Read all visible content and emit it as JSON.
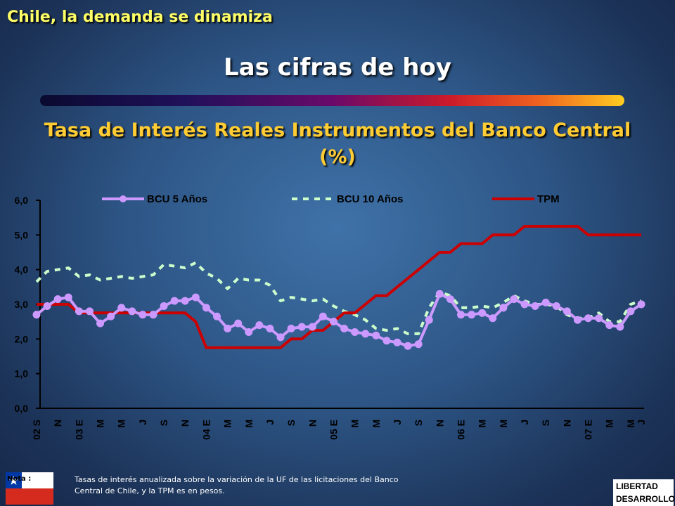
{
  "header": {
    "section": "Chile, la demanda se dinamiza",
    "title": "Las cifras de hoy"
  },
  "chart_data": {
    "type": "line",
    "title": "Tasa de Interés Reales Instrumentos del Banco Central",
    "subtitle": "(%)",
    "categories": [
      "02 S",
      null,
      "N",
      null,
      "03 E",
      null,
      "M",
      null,
      "M",
      null,
      "J",
      null,
      "S",
      null,
      "N",
      null,
      "04 E",
      null,
      "M",
      null,
      "M",
      null,
      "J",
      null,
      "S",
      null,
      "N",
      null,
      "05 E",
      null,
      "M",
      null,
      "M",
      null,
      "J",
      null,
      "S",
      null,
      "N",
      null,
      "06 E",
      null,
      "M",
      null,
      "M",
      null,
      "J",
      null,
      "S",
      null,
      "N",
      null,
      "07 E",
      null,
      "M",
      null,
      "M",
      "J"
    ],
    "series": [
      {
        "name": "BCU 5 Años",
        "color": "#cc99ff",
        "marker": "circle",
        "dashed": false,
        "values": [
          2.7,
          2.95,
          3.15,
          3.2,
          2.8,
          2.8,
          2.45,
          2.65,
          2.9,
          2.8,
          2.7,
          2.7,
          2.95,
          3.1,
          3.1,
          3.2,
          2.9,
          2.65,
          2.3,
          2.45,
          2.2,
          2.4,
          2.3,
          2.05,
          2.3,
          2.35,
          2.35,
          2.65,
          2.5,
          2.3,
          2.2,
          2.15,
          2.1,
          1.95,
          1.9,
          1.8,
          1.85,
          2.55,
          3.3,
          3.15,
          2.7,
          2.7,
          2.75,
          2.6,
          2.9,
          3.15,
          3.0,
          2.95,
          3.05,
          2.95,
          2.8,
          2.55,
          2.6,
          2.6,
          2.4,
          2.35,
          2.8,
          3.0
        ]
      },
      {
        "name": "BCU 10 Años",
        "color": "#ccffcc",
        "marker": "none",
        "dashed": true,
        "values": [
          3.65,
          3.95,
          4.0,
          4.05,
          3.8,
          3.85,
          3.7,
          3.75,
          3.8,
          3.75,
          3.8,
          3.85,
          4.15,
          4.1,
          4.05,
          4.2,
          3.9,
          3.75,
          3.45,
          3.75,
          3.7,
          3.7,
          3.55,
          3.1,
          3.2,
          3.15,
          3.1,
          3.15,
          2.95,
          2.8,
          2.7,
          2.55,
          2.3,
          2.25,
          2.3,
          2.15,
          2.15,
          2.9,
          3.35,
          3.25,
          2.9,
          2.9,
          2.95,
          2.9,
          3.05,
          3.25,
          3.1,
          3.0,
          3.0,
          2.95,
          2.7,
          2.6,
          2.6,
          2.75,
          2.5,
          2.5,
          3.0,
          3.1
        ]
      },
      {
        "name": "TPM",
        "color": "#cc0000",
        "marker": "none",
        "dashed": false,
        "values": [
          3.0,
          3.0,
          3.0,
          3.0,
          2.75,
          2.75,
          2.75,
          2.75,
          2.75,
          2.75,
          2.75,
          2.75,
          2.75,
          2.75,
          2.75,
          2.5,
          1.75,
          1.75,
          1.75,
          1.75,
          1.75,
          1.75,
          1.75,
          1.75,
          2.0,
          2.0,
          2.25,
          2.25,
          2.5,
          2.75,
          2.75,
          3.0,
          3.25,
          3.25,
          3.5,
          3.75,
          4.0,
          4.25,
          4.5,
          4.5,
          4.75,
          4.75,
          4.75,
          5.0,
          5.0,
          5.0,
          5.25,
          5.25,
          5.25,
          5.25,
          5.25,
          5.25,
          5.0,
          5.0,
          5.0,
          5.0,
          5.0,
          5.0
        ]
      }
    ],
    "ylim": [
      0,
      6
    ],
    "yticks": [
      {
        "value": 0,
        "label": "0,0"
      },
      {
        "value": 1,
        "label": "1,0"
      },
      {
        "value": 2,
        "label": "2,0"
      },
      {
        "value": 3,
        "label": "3,0"
      },
      {
        "value": 4,
        "label": "4,0"
      },
      {
        "value": 5,
        "label": "5,0"
      },
      {
        "value": 6,
        "label": "6,0"
      }
    ],
    "grid": false,
    "legend": "top"
  },
  "footer": {
    "note_label": "Nota :",
    "note": "Tasas de interés anualizada sobre la variación de la UF de las licitaciones del Banco Central  de Chile, y la TPM es en pesos.",
    "logo_top": "LIBERTAD",
    "logo_bottom": "DESARROLLO"
  }
}
